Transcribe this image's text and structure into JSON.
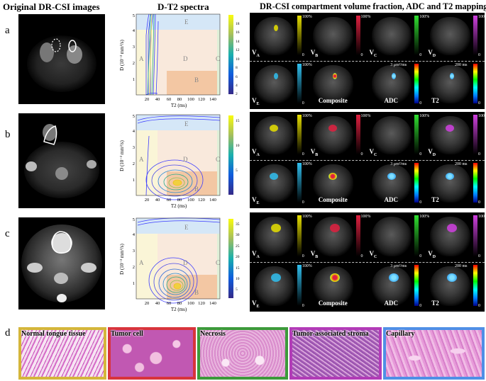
{
  "headers": {
    "original": "Original DR-CSI images",
    "spectra": "D-T2 spectra",
    "maps": "DR-CSI compartment volume fraction, ADC and T2 mappings"
  },
  "rows": [
    {
      "label": "a",
      "colorbar_ticks": [
        "18",
        "16",
        "14",
        "12",
        "10",
        "8",
        "6",
        "4",
        "2"
      ],
      "colorbar_max": 18
    },
    {
      "label": "b",
      "colorbar_ticks": [
        "15",
        "10",
        "5"
      ],
      "colorbar_max": 16
    },
    {
      "label": "c",
      "colorbar_ticks": [
        "35",
        "30",
        "25",
        "20",
        "15",
        "10",
        "5"
      ],
      "colorbar_max": 37
    }
  ],
  "spectrum": {
    "ylabel": "D (10⁻³ mm²/s)",
    "xlabel": "T2 (ms)",
    "xticks": [
      "20",
      "40",
      "60",
      "80",
      "100",
      "120",
      "140"
    ],
    "yticks": [
      "1",
      "2",
      "3",
      "4",
      "5"
    ],
    "regions": [
      "A",
      "B",
      "C",
      "D",
      "E"
    ]
  },
  "map_labels": {
    "va": "V",
    "va_sub": "A",
    "vb": "V",
    "vb_sub": "B",
    "vc": "V",
    "vc_sub": "C",
    "vd": "V",
    "vd_sub": "D",
    "ve": "V",
    "ve_sub": "E",
    "composite": "Composite",
    "adc": "ADC",
    "t2": "T2",
    "pct": "100%",
    "zero": "0",
    "adc_max": "3 μm²/ms",
    "t2_max": "200 ms"
  },
  "histology": {
    "label": "d",
    "panels": [
      {
        "name": "Normal tongue tissue",
        "border": "#d4b63a"
      },
      {
        "name": "Tumor cell",
        "border": "#d8343c"
      },
      {
        "name": "Necrosis",
        "border": "#3c9a3a"
      },
      {
        "name": "Tumor-associated stroma",
        "border": "#b23bb7"
      },
      {
        "name": "Capillary",
        "border": "#4f8fe6"
      }
    ]
  },
  "colors": {
    "va": "#e8e000",
    "vb": "#e02040",
    "vc": "#30e030",
    "vd": "#d040e0",
    "ve": "#30c0f0"
  }
}
